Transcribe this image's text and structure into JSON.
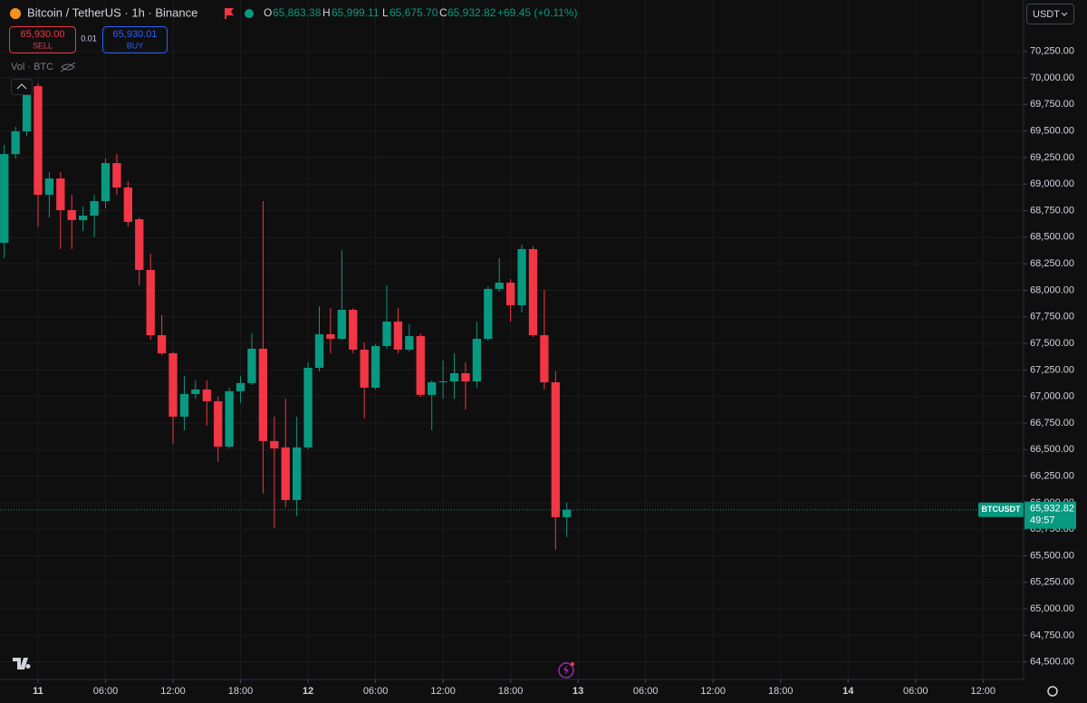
{
  "chart_data": {
    "type": "candlestick",
    "title": "Bitcoin / TetherUS · 1h · Binance",
    "ohlc_labels": {
      "open_key": "O",
      "open": "65,863.38",
      "high_key": "H",
      "high": "65,999.11",
      "low_key": "L",
      "low": "65,675.70",
      "close_key": "C",
      "close": "65,932.82",
      "change": "+69.45 (+0.11%)"
    },
    "trade": {
      "sell_price": "65,930.00",
      "sell": "SELL",
      "spread": "0.01",
      "buy_price": "65,930.01",
      "buy": "BUY"
    },
    "volume_label": "Vol · BTC",
    "currency": "USDT",
    "price_tag": {
      "symbol": "BTCUSDT",
      "price": "65,932.82",
      "countdown": "49:57"
    },
    "up_color": "#089981",
    "down_color": "#f23645",
    "x": [
      -3,
      -2,
      -1,
      0,
      1,
      2,
      3,
      4,
      5,
      6,
      7,
      8,
      9,
      10,
      11,
      12,
      13,
      14,
      15,
      16,
      17,
      18,
      19,
      20,
      21,
      22,
      23,
      24,
      25,
      26,
      27,
      28,
      29,
      30,
      31,
      32,
      33,
      34,
      35,
      36,
      37,
      38,
      39,
      40,
      41,
      42,
      43,
      44,
      45,
      46,
      47
    ],
    "open": [
      68447,
      69283,
      69497,
      69923,
      68900,
      69053,
      68755,
      68661,
      68703,
      68840,
      69198,
      68968,
      68669,
      68192,
      67577,
      67407,
      66810,
      67023,
      67066,
      66955,
      66528,
      67049,
      67126,
      67450,
      66580,
      66520,
      66025,
      66520,
      67270,
      67586,
      67543,
      67816,
      67441,
      67083,
      67475,
      67705,
      67441,
      67569,
      67015,
      67134,
      67142,
      67219,
      67142,
      67543,
      68013,
      68072,
      67859,
      68388,
      67577,
      67134,
      65863.38
    ],
    "high": [
      69369,
      69540,
      69880,
      69949,
      69113,
      69113,
      68900,
      68789,
      68900,
      69241,
      69283,
      69027,
      68686,
      68345,
      67765,
      67424,
      67194,
      67151,
      67151,
      66997,
      67083,
      67194,
      67595,
      68840,
      66810,
      66980,
      66810,
      67322,
      67850,
      67833,
      68379,
      67833,
      67509,
      67492,
      68047,
      67833,
      67680,
      67594,
      67151,
      67339,
      67407,
      67322,
      67705,
      68038,
      68302,
      68106,
      68430,
      68413,
      68004,
      67237,
      65999.11
    ],
    "low": [
      68302,
      69241,
      69454,
      68601,
      68686,
      68388,
      68388,
      68558,
      68499,
      68772,
      68900,
      68601,
      68047,
      67535,
      67390,
      66554,
      66682,
      66977,
      66725,
      66383,
      66511,
      66938,
      67108,
      66085,
      65761,
      65957,
      65872,
      66503,
      67236,
      67407,
      67535,
      67407,
      66793,
      67066,
      67450,
      67407,
      67424,
      66997,
      66682,
      66980,
      66980,
      66878,
      67083,
      67526,
      67987,
      67705,
      67791,
      67560,
      67066,
      65556,
      65675.7
    ],
    "close": [
      69283,
      69497,
      69838,
      68900,
      69053,
      68755,
      68661,
      68703,
      68840,
      69198,
      68968,
      68644,
      68192,
      67577,
      67407,
      66810,
      67023,
      67066,
      66955,
      66528,
      67049,
      67126,
      67450,
      66580,
      66511,
      66025,
      66520,
      67270,
      67586,
      67543,
      67816,
      67441,
      67083,
      67475,
      67705,
      67441,
      67569,
      67015,
      67134,
      67142,
      67219,
      67142,
      67543,
      68013,
      68072,
      67859,
      68388,
      67577,
      67134,
      65863,
      65932.82
    ],
    "xlim": [
      -3.38,
      87.6
    ],
    "xticks": [
      {
        "value": 0,
        "label": "11"
      },
      {
        "value": 6,
        "label": "06:00"
      },
      {
        "value": 12,
        "label": "12:00"
      },
      {
        "value": 18,
        "label": "18:00"
      },
      {
        "value": 24,
        "label": "12"
      },
      {
        "value": 30,
        "label": "06:00"
      },
      {
        "value": 36,
        "label": "12:00"
      },
      {
        "value": 42,
        "label": "18:00"
      },
      {
        "value": 48,
        "label": "13"
      },
      {
        "value": 54,
        "label": "06:00"
      },
      {
        "value": 60,
        "label": "12:00"
      },
      {
        "value": 66,
        "label": "18:00"
      },
      {
        "value": 72,
        "label": "14"
      },
      {
        "value": 78,
        "label": "06:00"
      },
      {
        "value": 84,
        "label": "12:00"
      }
    ],
    "ylim": [
      64335,
      70734
    ],
    "yticks": [
      {
        "value": 70250,
        "label": "70,250.00"
      },
      {
        "value": 70000,
        "label": "70,000.00"
      },
      {
        "value": 69750,
        "label": "69,750.00"
      },
      {
        "value": 69500,
        "label": "69,500.00"
      },
      {
        "value": 69250,
        "label": "69,250.00"
      },
      {
        "value": 69000,
        "label": "69,000.00"
      },
      {
        "value": 68750,
        "label": "68,750.00"
      },
      {
        "value": 68500,
        "label": "68,500.00"
      },
      {
        "value": 68250,
        "label": "68,250.00"
      },
      {
        "value": 68000,
        "label": "68,000.00"
      },
      {
        "value": 67750,
        "label": "67,750.00"
      },
      {
        "value": 67500,
        "label": "67,500.00"
      },
      {
        "value": 67250,
        "label": "67,250.00"
      },
      {
        "value": 67000,
        "label": "67,000.00"
      },
      {
        "value": 66750,
        "label": "66,750.00"
      },
      {
        "value": 66500,
        "label": "66,500.00"
      },
      {
        "value": 66250,
        "label": "66,250.00"
      },
      {
        "value": 66000,
        "label": "66,000.00"
      },
      {
        "value": 65750,
        "label": "65,750.00"
      },
      {
        "value": 65500,
        "label": "65,500.00"
      },
      {
        "value": 65250,
        "label": "65,250.00"
      },
      {
        "value": 65000,
        "label": "65,000.00"
      },
      {
        "value": 64750,
        "label": "64,750.00"
      },
      {
        "value": 64500,
        "label": "64,500.00"
      }
    ],
    "grid": true
  }
}
